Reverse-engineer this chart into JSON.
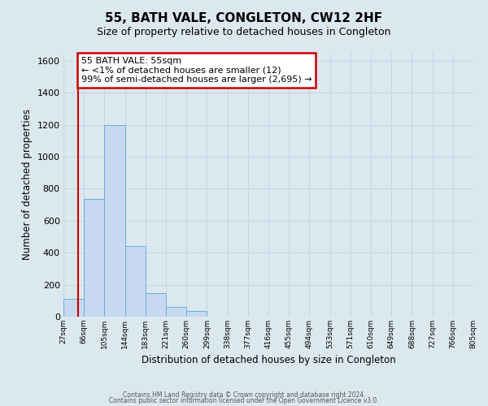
{
  "title": "55, BATH VALE, CONGLETON, CW12 2HF",
  "subtitle": "Size of property relative to detached houses in Congleton",
  "xlabel": "Distribution of detached houses by size in Congleton",
  "ylabel": "Number of detached properties",
  "bin_edges": [
    27,
    66,
    105,
    144,
    183,
    221,
    260,
    299,
    338,
    377,
    416,
    455,
    494,
    533,
    571,
    610,
    649,
    688,
    727,
    766,
    805
  ],
  "bar_values": [
    110,
    735,
    1200,
    440,
    145,
    62,
    35,
    0,
    0,
    0,
    0,
    0,
    0,
    0,
    0,
    0,
    0,
    0,
    0,
    0
  ],
  "bar_color": "#c6d9f0",
  "bar_edge_color": "#6baed6",
  "property_sqm": 55,
  "annotation_title": "55 BATH VALE: 55sqm",
  "annotation_line1": "← <1% of detached houses are smaller (12)",
  "annotation_line2": "99% of semi-detached houses are larger (2,695) →",
  "annotation_box_color": "#ffffff",
  "annotation_box_edge": "#cc0000",
  "red_line_color": "#cc0000",
  "ylim": [
    0,
    1650
  ],
  "yticks": [
    0,
    200,
    400,
    600,
    800,
    1000,
    1200,
    1400,
    1600
  ],
  "grid_color": "#c8d4e0",
  "background_color": "#dce8f0",
  "footer1": "Contains HM Land Registry data © Crown copyright and database right 2024.",
  "footer2": "Contains public sector information licensed under the Open Government Licence v3.0."
}
